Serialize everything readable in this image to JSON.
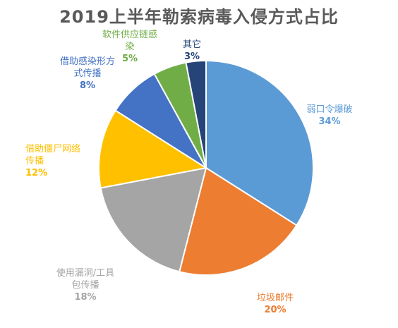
{
  "chart_data": {
    "type": "pie",
    "title": "2019上半年勒索病毒入侵方式占比",
    "start_angle_deg": 0,
    "direction": "clockwise",
    "slices": [
      {
        "label": "弱口令爆破",
        "value": 34,
        "value_label": "34%",
        "color": "#5B9BD5"
      },
      {
        "label": "垃圾邮件",
        "value": 20,
        "value_label": "20%",
        "color": "#ED7D31"
      },
      {
        "label": "使用漏洞/工具\n包传播",
        "value": 18,
        "value_label": "18%",
        "color": "#A5A5A5"
      },
      {
        "label": "借助僵尸网络\n传播",
        "value": 12,
        "value_label": "12%",
        "color": "#FFC000"
      },
      {
        "label": "借助感染形方\n式传播",
        "value": 8,
        "value_label": "8%",
        "color": "#4472C4"
      },
      {
        "label": "软件供应链感\n染",
        "value": 5,
        "value_label": "5%",
        "color": "#70AD47"
      },
      {
        "label": "其它",
        "value": 3,
        "value_label": "3%",
        "color": "#264478"
      }
    ],
    "label_colors": [
      "#5B9BD5",
      "#ED7D31",
      "#A5A5A5",
      "#FFC000",
      "#4472C4",
      "#70AD47",
      "#264478"
    ]
  }
}
